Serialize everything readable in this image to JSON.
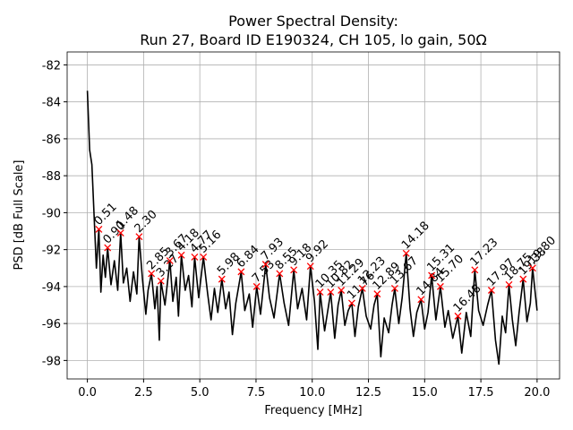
{
  "chart_data": {
    "type": "line",
    "title": [
      "Power Spectral Density:",
      "Run 27, Board ID E190324, CH 105, lo gain, 50Ω"
    ],
    "xlabel": "Frequency [MHz]",
    "ylabel": "PSD [dB Full Scale]",
    "xlim": [
      -0.9,
      21.0
    ],
    "ylim": [
      -99.0,
      -81.3
    ],
    "grid": true,
    "xticks": [
      {
        "value": 0,
        "label": "0.0"
      },
      {
        "value": 2.5,
        "label": "2.5"
      },
      {
        "value": 5,
        "label": "5.0"
      },
      {
        "value": 7.5,
        "label": "7.5"
      },
      {
        "value": 10,
        "label": "10.0"
      },
      {
        "value": 12.5,
        "label": "12.5"
      },
      {
        "value": 15,
        "label": "15.0"
      },
      {
        "value": 17.5,
        "label": "17.5"
      },
      {
        "value": 20,
        "label": "20.0"
      }
    ],
    "yticks": [
      -98,
      -96,
      -94,
      -92,
      -90,
      -88,
      -86,
      -84,
      -82
    ],
    "series": [
      {
        "color": "#000000",
        "x": [
          0,
          0.05,
          0.1,
          0.2,
          0.3,
          0.4,
          0.51,
          0.6,
          0.7,
          0.8,
          0.9,
          1.05,
          1.2,
          1.35,
          1.48,
          1.6,
          1.75,
          1.9,
          2.05,
          2.2,
          2.3,
          2.45,
          2.6,
          2.7,
          2.85,
          3.0,
          3.1,
          3.2,
          3.27,
          3.45,
          3.67,
          3.8,
          3.95,
          4.05,
          4.18,
          4.35,
          4.5,
          4.65,
          4.77,
          4.95,
          5.16,
          5.35,
          5.5,
          5.65,
          5.8,
          5.98,
          6.15,
          6.3,
          6.45,
          6.6,
          6.84,
          7.0,
          7.2,
          7.35,
          7.53,
          7.7,
          7.93,
          8.1,
          8.3,
          8.55,
          8.75,
          8.95,
          9.18,
          9.35,
          9.55,
          9.75,
          9.92,
          10.1,
          10.25,
          10.35,
          10.55,
          10.82,
          11.0,
          11.15,
          11.29,
          11.45,
          11.6,
          11.76,
          11.9,
          12.05,
          12.23,
          12.4,
          12.6,
          12.75,
          12.89,
          13.05,
          13.2,
          13.4,
          13.55,
          13.67,
          13.85,
          14.0,
          14.18,
          14.35,
          14.5,
          14.65,
          14.84,
          15.0,
          15.15,
          15.31,
          15.5,
          15.7,
          15.9,
          16.05,
          16.25,
          16.48,
          16.65,
          16.85,
          17.05,
          17.23,
          17.4,
          17.6,
          17.8,
          17.97,
          18.15,
          18.3,
          18.45,
          18.6,
          18.75,
          18.9,
          19.05,
          19.2,
          19.38,
          19.55,
          19.7,
          19.8,
          20.0
        ],
        "values": [
          -83.4,
          -85.0,
          -86.6,
          -87.4,
          -90.2,
          -93.0,
          -90.9,
          -94.3,
          -92.3,
          -93.5,
          -91.9,
          -93.9,
          -92.6,
          -94.2,
          -91.1,
          -93.8,
          -93.0,
          -94.8,
          -93.2,
          -94.4,
          -91.3,
          -93.6,
          -95.5,
          -94.2,
          -93.3,
          -95.2,
          -94.0,
          -96.9,
          -93.7,
          -95.0,
          -92.6,
          -94.8,
          -93.5,
          -95.6,
          -92.3,
          -94.2,
          -93.4,
          -95.1,
          -92.4,
          -94.6,
          -92.4,
          -94.4,
          -95.8,
          -94.1,
          -95.4,
          -93.6,
          -95.2,
          -94.3,
          -96.6,
          -94.9,
          -93.2,
          -95.3,
          -94.4,
          -96.2,
          -94.0,
          -95.5,
          -92.8,
          -94.6,
          -95.7,
          -93.3,
          -94.9,
          -96.1,
          -93.1,
          -95.2,
          -94.1,
          -95.8,
          -92.9,
          -94.8,
          -97.4,
          -94.3,
          -96.4,
          -94.3,
          -96.8,
          -95.0,
          -94.2,
          -96.1,
          -95.3,
          -94.9,
          -96.7,
          -95.1,
          -94.1,
          -95.6,
          -96.3,
          -95.0,
          -94.4,
          -97.8,
          -95.7,
          -96.5,
          -95.0,
          -94.1,
          -96.0,
          -94.6,
          -92.2,
          -95.2,
          -96.7,
          -95.4,
          -94.7,
          -96.3,
          -95.4,
          -93.4,
          -95.8,
          -94.0,
          -96.2,
          -95.3,
          -96.8,
          -95.6,
          -97.6,
          -95.4,
          -96.7,
          -93.1,
          -95.3,
          -96.1,
          -95.0,
          -94.2,
          -96.9,
          -98.2,
          -95.6,
          -96.5,
          -93.9,
          -95.8,
          -97.2,
          -95.4,
          -93.6,
          -95.9,
          -94.9,
          -93.0,
          -95.3
        ]
      },
      {
        "color": "#ff0000",
        "marker": "x",
        "x": [
          0.51,
          0.9,
          1.48,
          2.3,
          2.85,
          3.27,
          3.67,
          4.18,
          4.77,
          5.16,
          5.98,
          6.84,
          7.53,
          7.93,
          8.55,
          9.18,
          9.92,
          10.35,
          10.82,
          11.29,
          11.76,
          12.23,
          12.89,
          13.67,
          14.18,
          14.84,
          15.31,
          15.7,
          16.48,
          17.23,
          17.97,
          18.75,
          19.38,
          19.8
        ],
        "values": [
          -90.9,
          -91.9,
          -91.1,
          -91.3,
          -93.3,
          -93.7,
          -92.6,
          -92.3,
          -92.4,
          -92.4,
          -93.6,
          -93.2,
          -94.0,
          -92.8,
          -93.3,
          -93.1,
          -92.9,
          -94.3,
          -94.3,
          -94.2,
          -94.9,
          -94.1,
          -94.4,
          -94.1,
          -92.2,
          -94.7,
          -93.4,
          -94.0,
          -95.6,
          -93.1,
          -94.2,
          -93.9,
          -93.6,
          -93.0
        ],
        "labels": [
          "0.51",
          "0.90",
          "1.48",
          "2.30",
          "2.85",
          "3.27",
          "3.67",
          "4.18",
          "4.77",
          "5.16",
          "5.98",
          "6.84",
          "7.53",
          "7.93",
          "8.55",
          "9.18",
          "9.92",
          "10.35",
          "10.82",
          "11.29",
          "11.76",
          "12.23",
          "12.89",
          "13.67",
          "14.18",
          "14.84",
          "15.31",
          "15.70",
          "16.48",
          "17.23",
          "17.97",
          "18.75",
          "19.38",
          "19.80"
        ]
      }
    ]
  }
}
